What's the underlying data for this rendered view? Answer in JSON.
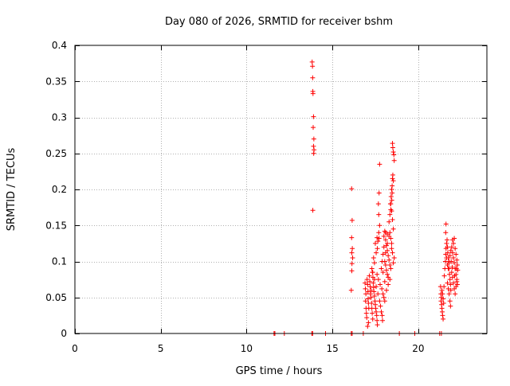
{
  "chart_data": {
    "type": "scatter",
    "title": "Day 080 of 2026, SRMTID for receiver bshm",
    "xlabel": "GPS time / hours",
    "ylabel": "SRMTID / TECUs",
    "xlim": [
      0,
      24
    ],
    "ylim": [
      0,
      0.4
    ],
    "x_ticks": [
      0,
      5,
      10,
      15,
      20
    ],
    "x_tick_labels": [
      "0",
      "5",
      "10",
      "15",
      "20"
    ],
    "y_ticks": [
      0,
      0.05,
      0.1,
      0.15,
      0.2,
      0.25,
      0.3,
      0.35,
      0.4
    ],
    "y_tick_labels": [
      "0",
      "0.05",
      "0.1",
      "0.15",
      "0.2",
      "0.25",
      "0.3",
      "0.35",
      "0.4"
    ],
    "grid": true,
    "marker": "+",
    "color": "#ff0000",
    "series": [
      {
        "name": "SRMTID",
        "points": [
          [
            11.6,
            0.0
          ],
          [
            11.65,
            0.0
          ],
          [
            12.2,
            0.0
          ],
          [
            13.8,
            0.0
          ],
          [
            13.85,
            0.0
          ],
          [
            14.6,
            0.0
          ],
          [
            16.1,
            0.0
          ],
          [
            16.15,
            0.0
          ],
          [
            16.8,
            0.0
          ],
          [
            18.9,
            0.0
          ],
          [
            19.8,
            0.0
          ],
          [
            21.25,
            0.0
          ],
          [
            21.35,
            0.0
          ],
          [
            13.82,
            0.377
          ],
          [
            13.84,
            0.371
          ],
          [
            13.85,
            0.355
          ],
          [
            13.86,
            0.336
          ],
          [
            13.87,
            0.333
          ],
          [
            13.9,
            0.301
          ],
          [
            13.88,
            0.286
          ],
          [
            13.92,
            0.27
          ],
          [
            13.9,
            0.26
          ],
          [
            13.93,
            0.255
          ],
          [
            13.91,
            0.25
          ],
          [
            13.86,
            0.171
          ],
          [
            16.12,
            0.201
          ],
          [
            16.15,
            0.157
          ],
          [
            16.12,
            0.133
          ],
          [
            16.16,
            0.118
          ],
          [
            16.13,
            0.112
          ],
          [
            16.18,
            0.105
          ],
          [
            16.14,
            0.097
          ],
          [
            16.13,
            0.087
          ],
          [
            16.1,
            0.06
          ],
          [
            16.9,
            0.07
          ],
          [
            16.92,
            0.062
          ],
          [
            16.95,
            0.055
          ],
          [
            16.93,
            0.045
          ],
          [
            16.96,
            0.035
          ],
          [
            16.98,
            0.028
          ],
          [
            17.0,
            0.022
          ],
          [
            17.02,
            0.075
          ],
          [
            17.05,
            0.068
          ],
          [
            17.07,
            0.058
          ],
          [
            17.08,
            0.048
          ],
          [
            17.1,
            0.042
          ],
          [
            17.12,
            0.035
          ],
          [
            17.1,
            0.015
          ],
          [
            17.05,
            0.01
          ],
          [
            17.15,
            0.08
          ],
          [
            17.18,
            0.072
          ],
          [
            17.2,
            0.065
          ],
          [
            17.22,
            0.055
          ],
          [
            17.25,
            0.05
          ],
          [
            17.28,
            0.042
          ],
          [
            17.3,
            0.035
          ],
          [
            17.32,
            0.028
          ],
          [
            17.35,
            0.02
          ],
          [
            17.3,
            0.09
          ],
          [
            17.33,
            0.085
          ],
          [
            17.36,
            0.078
          ],
          [
            17.38,
            0.07
          ],
          [
            17.4,
            0.064
          ],
          [
            17.42,
            0.058
          ],
          [
            17.45,
            0.052
          ],
          [
            17.48,
            0.045
          ],
          [
            17.5,
            0.04
          ],
          [
            17.52,
            0.035
          ],
          [
            17.55,
            0.03
          ],
          [
            17.58,
            0.025
          ],
          [
            17.6,
            0.018
          ],
          [
            17.62,
            0.012
          ],
          [
            17.4,
            0.105
          ],
          [
            17.45,
            0.098
          ],
          [
            17.5,
            0.125
          ],
          [
            17.55,
            0.112
          ],
          [
            17.6,
            0.133
          ],
          [
            17.62,
            0.118
          ],
          [
            17.65,
            0.128
          ],
          [
            17.7,
            0.14
          ],
          [
            17.72,
            0.132
          ],
          [
            17.75,
            0.15
          ],
          [
            17.7,
            0.165
          ],
          [
            17.68,
            0.18
          ],
          [
            17.72,
            0.195
          ],
          [
            17.75,
            0.235
          ],
          [
            17.25,
            0.06
          ],
          [
            17.35,
            0.085
          ],
          [
            17.45,
            0.075
          ],
          [
            17.55,
            0.065
          ],
          [
            17.65,
            0.055
          ],
          [
            17.75,
            0.045
          ],
          [
            17.8,
            0.038
          ],
          [
            17.85,
            0.03
          ],
          [
            17.9,
            0.025
          ],
          [
            17.92,
            0.018
          ],
          [
            17.6,
            0.082
          ],
          [
            17.68,
            0.075
          ],
          [
            17.78,
            0.068
          ],
          [
            17.88,
            0.062
          ],
          [
            17.95,
            0.055
          ],
          [
            18.0,
            0.05
          ],
          [
            18.05,
            0.045
          ],
          [
            17.85,
            0.09
          ],
          [
            17.9,
            0.1
          ],
          [
            17.95,
            0.11
          ],
          [
            18.0,
            0.12
          ],
          [
            18.05,
            0.1
          ],
          [
            18.1,
            0.095
          ],
          [
            18.15,
            0.088
          ],
          [
            18.2,
            0.082
          ],
          [
            18.25,
            0.078
          ],
          [
            18.0,
            0.135
          ],
          [
            18.05,
            0.142
          ],
          [
            18.1,
            0.13
          ],
          [
            18.15,
            0.122
          ],
          [
            18.2,
            0.115
          ],
          [
            18.25,
            0.108
          ],
          [
            18.3,
            0.102
          ],
          [
            18.35,
            0.095
          ],
          [
            18.4,
            0.09
          ],
          [
            18.1,
            0.14
          ],
          [
            18.2,
            0.138
          ],
          [
            18.3,
            0.135
          ],
          [
            18.35,
            0.14
          ],
          [
            18.4,
            0.132
          ],
          [
            18.45,
            0.125
          ],
          [
            18.3,
            0.155
          ],
          [
            18.35,
            0.165
          ],
          [
            18.4,
            0.172
          ],
          [
            18.38,
            0.18
          ],
          [
            18.42,
            0.19
          ],
          [
            18.45,
            0.2
          ],
          [
            18.48,
            0.205
          ],
          [
            18.5,
            0.215
          ],
          [
            18.52,
            0.22
          ],
          [
            18.55,
            0.212
          ],
          [
            18.4,
            0.18
          ],
          [
            18.45,
            0.17
          ],
          [
            18.5,
            0.158
          ],
          [
            18.55,
            0.145
          ],
          [
            18.5,
            0.264
          ],
          [
            18.52,
            0.258
          ],
          [
            18.55,
            0.252
          ],
          [
            18.58,
            0.248
          ],
          [
            18.6,
            0.24
          ],
          [
            18.48,
            0.195
          ],
          [
            18.46,
            0.185
          ],
          [
            18.6,
            0.105
          ],
          [
            18.55,
            0.098
          ],
          [
            18.5,
            0.112
          ],
          [
            18.45,
            0.118
          ],
          [
            18.35,
            0.075
          ],
          [
            18.25,
            0.068
          ],
          [
            18.15,
            0.06
          ],
          [
            18.05,
            0.072
          ],
          [
            17.95,
            0.085
          ],
          [
            18.1,
            0.112
          ],
          [
            18.2,
            0.125
          ],
          [
            21.3,
            0.065
          ],
          [
            21.32,
            0.055
          ],
          [
            21.35,
            0.05
          ],
          [
            21.33,
            0.045
          ],
          [
            21.36,
            0.04
          ],
          [
            21.38,
            0.035
          ],
          [
            21.4,
            0.03
          ],
          [
            21.42,
            0.025
          ],
          [
            21.45,
            0.02
          ],
          [
            21.38,
            0.06
          ],
          [
            21.42,
            0.055
          ],
          [
            21.45,
            0.048
          ],
          [
            21.48,
            0.042
          ],
          [
            21.5,
            0.065
          ],
          [
            21.52,
            0.08
          ],
          [
            21.55,
            0.09
          ],
          [
            21.58,
            0.1
          ],
          [
            21.6,
            0.11
          ],
          [
            21.62,
            0.118
          ],
          [
            21.65,
            0.125
          ],
          [
            21.6,
            0.14
          ],
          [
            21.62,
            0.152
          ],
          [
            21.68,
            0.13
          ],
          [
            21.7,
            0.12
          ],
          [
            21.72,
            0.112
          ],
          [
            21.75,
            0.105
          ],
          [
            21.78,
            0.098
          ],
          [
            21.8,
            0.09
          ],
          [
            21.82,
            0.082
          ],
          [
            21.85,
            0.075
          ],
          [
            21.88,
            0.068
          ],
          [
            21.9,
            0.06
          ],
          [
            21.7,
            0.07
          ],
          [
            21.75,
            0.062
          ],
          [
            21.8,
            0.055
          ],
          [
            21.85,
            0.045
          ],
          [
            21.88,
            0.038
          ],
          [
            21.75,
            0.09
          ],
          [
            21.8,
            0.1
          ],
          [
            21.85,
            0.108
          ],
          [
            21.9,
            0.115
          ],
          [
            21.95,
            0.12
          ],
          [
            22.0,
            0.112
          ],
          [
            22.05,
            0.105
          ],
          [
            22.1,
            0.098
          ],
          [
            22.15,
            0.09
          ],
          [
            22.2,
            0.082
          ],
          [
            22.25,
            0.075
          ],
          [
            22.28,
            0.068
          ],
          [
            22.0,
            0.13
          ],
          [
            22.05,
            0.125
          ],
          [
            22.1,
            0.132
          ],
          [
            22.15,
            0.118
          ],
          [
            22.2,
            0.11
          ],
          [
            22.25,
            0.102
          ],
          [
            22.28,
            0.095
          ],
          [
            22.3,
            0.088
          ],
          [
            22.05,
            0.07
          ],
          [
            22.1,
            0.062
          ],
          [
            22.15,
            0.055
          ],
          [
            22.2,
            0.065
          ],
          [
            22.25,
            0.072
          ],
          [
            21.95,
            0.085
          ],
          [
            22.0,
            0.078
          ],
          [
            21.65,
            0.105
          ],
          [
            21.7,
            0.095
          ],
          [
            21.92,
            0.1
          ],
          [
            21.98,
            0.092
          ],
          [
            22.12,
            0.08
          ],
          [
            22.22,
            0.09
          ]
        ]
      }
    ]
  }
}
